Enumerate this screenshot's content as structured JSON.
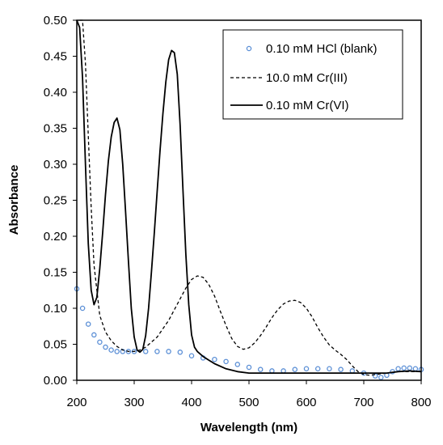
{
  "chart_data": {
    "type": "line",
    "xlabel": "Wavelength (nm)",
    "ylabel": "Absorbance",
    "xlim": [
      200,
      800
    ],
    "ylim": [
      0,
      0.5
    ],
    "xticks": [
      "200",
      "300",
      "400",
      "500",
      "600",
      "700",
      "800"
    ],
    "yticks": [
      "0.00",
      "0.05",
      "0.10",
      "0.15",
      "0.20",
      "0.25",
      "0.30",
      "0.35",
      "0.40",
      "0.45",
      "0.50"
    ],
    "grid": false,
    "legend_position": "top-right",
    "series": [
      {
        "name": "0.10 mM HCl (blank)",
        "style": "markers",
        "color": "#5b8fd6",
        "x": [
          200,
          210,
          220,
          230,
          240,
          250,
          260,
          270,
          280,
          290,
          300,
          320,
          340,
          360,
          380,
          400,
          420,
          440,
          460,
          480,
          500,
          520,
          540,
          560,
          580,
          600,
          620,
          640,
          660,
          680,
          700,
          720,
          730,
          740,
          750,
          760,
          770,
          780,
          790,
          800
        ],
        "y": [
          0.127,
          0.1,
          0.078,
          0.063,
          0.053,
          0.046,
          0.042,
          0.04,
          0.04,
          0.04,
          0.04,
          0.04,
          0.04,
          0.04,
          0.039,
          0.034,
          0.031,
          0.029,
          0.026,
          0.022,
          0.018,
          0.015,
          0.013,
          0.013,
          0.015,
          0.016,
          0.016,
          0.016,
          0.015,
          0.013,
          0.01,
          0.006,
          0.004,
          0.007,
          0.012,
          0.016,
          0.017,
          0.017,
          0.016,
          0.015
        ]
      },
      {
        "name": "10.0 mM Cr(III)",
        "style": "dashed",
        "color": "#000000",
        "x": [
          205,
          210,
          215,
          220,
          225,
          230,
          240,
          250,
          260,
          270,
          280,
          290,
          300,
          310,
          320,
          340,
          360,
          380,
          390,
          400,
          410,
          420,
          430,
          440,
          450,
          460,
          470,
          480,
          490,
          500,
          510,
          520,
          530,
          540,
          550,
          560,
          570,
          580,
          590,
          600,
          610,
          620,
          630,
          640,
          650,
          660,
          670,
          680,
          690,
          700,
          710,
          720,
          740,
          760,
          780,
          800
        ],
        "y": [
          0.5,
          0.5,
          0.44,
          0.34,
          0.24,
          0.16,
          0.09,
          0.067,
          0.055,
          0.047,
          0.042,
          0.04,
          0.04,
          0.042,
          0.046,
          0.06,
          0.083,
          0.113,
          0.128,
          0.14,
          0.145,
          0.143,
          0.133,
          0.117,
          0.096,
          0.076,
          0.058,
          0.047,
          0.043,
          0.045,
          0.052,
          0.062,
          0.074,
          0.087,
          0.098,
          0.106,
          0.11,
          0.111,
          0.108,
          0.1,
          0.088,
          0.073,
          0.06,
          0.049,
          0.042,
          0.036,
          0.029,
          0.02,
          0.012,
          0.008,
          0.007,
          0.008,
          0.01,
          0.012,
          0.012,
          0.012
        ]
      },
      {
        "name": "0.10 mM Cr(VI)",
        "style": "solid",
        "color": "#000000",
        "x": [
          200,
          205,
          210,
          215,
          220,
          225,
          230,
          235,
          240,
          245,
          250,
          255,
          260,
          265,
          270,
          275,
          280,
          285,
          290,
          295,
          300,
          305,
          310,
          315,
          320,
          325,
          330,
          335,
          340,
          345,
          350,
          355,
          360,
          365,
          370,
          375,
          380,
          385,
          390,
          395,
          400,
          405,
          410,
          420,
          430,
          440,
          460,
          480,
          500,
          520,
          540,
          560,
          580,
          600,
          620,
          640,
          660,
          680,
          700,
          720,
          740,
          760,
          780,
          800
        ],
        "y": [
          0.5,
          0.49,
          0.42,
          0.3,
          0.19,
          0.125,
          0.105,
          0.115,
          0.155,
          0.205,
          0.258,
          0.305,
          0.338,
          0.358,
          0.364,
          0.348,
          0.3,
          0.235,
          0.165,
          0.1,
          0.06,
          0.042,
          0.039,
          0.043,
          0.062,
          0.1,
          0.15,
          0.205,
          0.262,
          0.318,
          0.37,
          0.414,
          0.445,
          0.458,
          0.455,
          0.425,
          0.355,
          0.265,
          0.175,
          0.105,
          0.063,
          0.046,
          0.04,
          0.033,
          0.028,
          0.023,
          0.016,
          0.012,
          0.01,
          0.01,
          0.01,
          0.01,
          0.01,
          0.01,
          0.01,
          0.01,
          0.01,
          0.01,
          0.01,
          0.01,
          0.01,
          0.012,
          0.013,
          0.012
        ]
      }
    ]
  }
}
